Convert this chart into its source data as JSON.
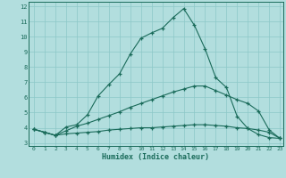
{
  "xlabel": "Humidex (Indice chaleur)",
  "xlim": [
    -0.5,
    23.3
  ],
  "ylim": [
    2.8,
    12.3
  ],
  "yticks": [
    3,
    4,
    5,
    6,
    7,
    8,
    9,
    10,
    11,
    12
  ],
  "xticks": [
    0,
    1,
    2,
    3,
    4,
    5,
    6,
    7,
    8,
    9,
    10,
    11,
    12,
    13,
    14,
    15,
    16,
    17,
    18,
    19,
    20,
    21,
    22,
    23
  ],
  "bg_color": "#b2dede",
  "grid_color": "#8cc8c8",
  "line_color": "#1a6b5a",
  "line1_x": [
    0,
    1,
    2,
    3,
    4,
    5,
    6,
    7,
    8,
    9,
    10,
    11,
    12,
    13,
    14,
    15,
    16,
    17,
    18,
    19,
    20,
    21,
    22,
    23
  ],
  "line1_y": [
    3.9,
    3.7,
    3.5,
    3.6,
    3.65,
    3.7,
    3.75,
    3.85,
    3.9,
    3.95,
    4.0,
    4.0,
    4.05,
    4.1,
    4.15,
    4.2,
    4.2,
    4.15,
    4.1,
    4.0,
    3.95,
    3.85,
    3.7,
    3.3
  ],
  "line2_x": [
    0,
    1,
    2,
    3,
    4,
    5,
    6,
    7,
    8,
    9,
    10,
    11,
    12,
    13,
    14,
    15,
    16,
    17,
    18,
    19,
    20,
    21,
    22,
    23
  ],
  "line2_y": [
    3.9,
    3.7,
    3.5,
    3.8,
    4.1,
    4.3,
    4.55,
    4.8,
    5.05,
    5.35,
    5.6,
    5.85,
    6.1,
    6.35,
    6.55,
    6.75,
    6.75,
    6.45,
    6.15,
    5.85,
    5.6,
    5.1,
    3.85,
    3.3
  ],
  "line3_x": [
    0,
    1,
    2,
    3,
    4,
    5,
    6,
    7,
    8,
    9,
    10,
    11,
    12,
    13,
    14,
    15,
    16,
    17,
    18,
    19,
    20,
    21,
    22,
    23
  ],
  "line3_y": [
    3.9,
    3.7,
    3.5,
    4.05,
    4.2,
    4.85,
    6.1,
    6.85,
    7.55,
    8.85,
    9.9,
    10.25,
    10.55,
    11.25,
    11.85,
    10.75,
    9.2,
    7.3,
    6.65,
    4.75,
    3.95,
    3.55,
    3.35,
    3.3
  ]
}
